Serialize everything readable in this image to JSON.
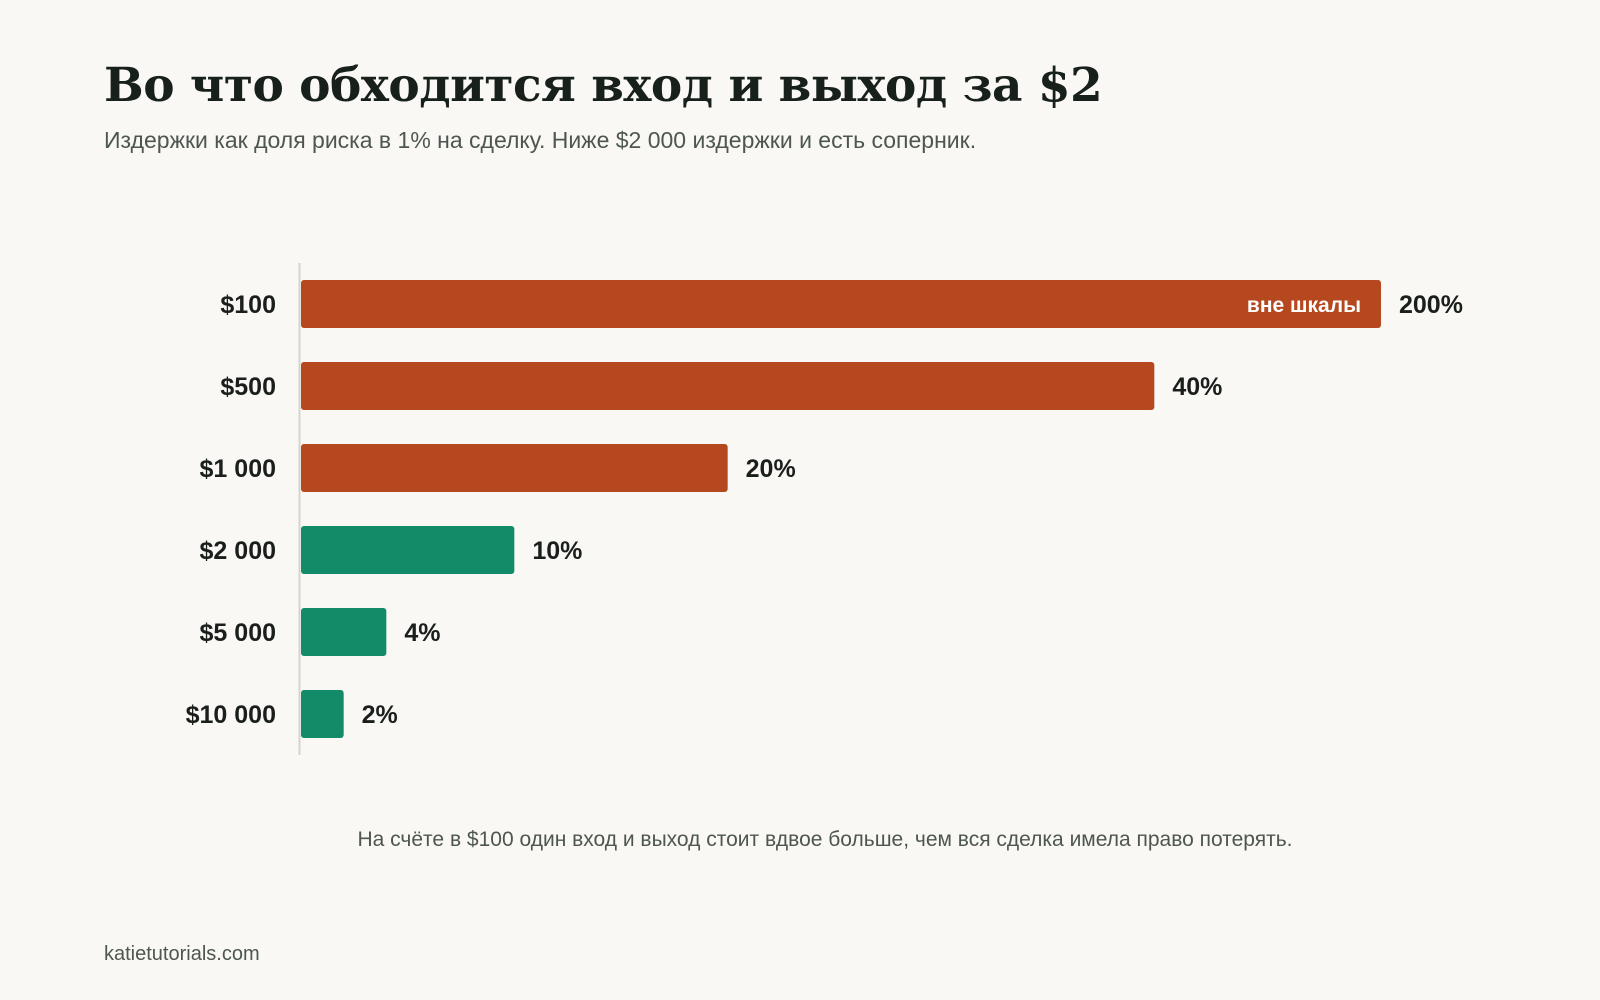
{
  "title": "Во что обходится вход и выход за $2",
  "subtitle": "Издержки как доля риска в 1% на сделку. Ниже $2 000 издержки и есть соперник.",
  "note": "На счёте в $100 один вход и выход стоит вдвое больше, чем вся сделка имела право потерять.",
  "source": "katietutorials.com",
  "colors": {
    "background": "#f9f8f5",
    "cost_exceeds": "#b5481e",
    "cost_acceptable": "#138a68",
    "axis_line": "#d6d3cc",
    "text": "#1b1f1c",
    "muted_text": "#4e5650"
  },
  "chart_data": {
    "type": "bar",
    "orientation": "horizontal",
    "categories": [
      "$100",
      "$500",
      "$1 000",
      "$2 000",
      "$5 000",
      "$10 000"
    ],
    "values": [
      200,
      40,
      20,
      10,
      4,
      2
    ],
    "value_labels": [
      "200%",
      "40%",
      "20%",
      "10%",
      "4%",
      "2%"
    ],
    "bar_groups": [
      "high",
      "high",
      "high",
      "low",
      "low",
      "low"
    ],
    "axis_max_shown": 45,
    "off_scale": [
      true,
      false,
      false,
      false,
      false,
      false
    ],
    "off_scale_label": "вне шкалы",
    "grid": false,
    "legend": "none"
  }
}
